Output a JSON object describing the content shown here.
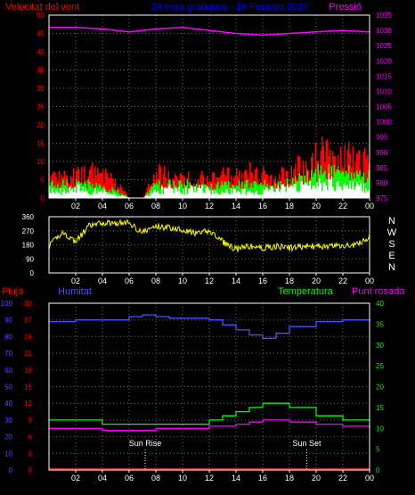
{
  "header": {
    "title": "24 hora gràfiques - 16 Febrero 2020",
    "wind_label": "Velocitat del vent",
    "pressure_label": "Pressió"
  },
  "footer": {
    "rain_label": "Pluja",
    "humidity_label": "Humitat",
    "temperature_label": "Temperatura",
    "dewpoint_label": "Punt rosada",
    "sunrise_label": "Sun Rise",
    "sunset_label": "Sun Set"
  },
  "colors": {
    "background": "#000000",
    "grid": "#6a6a6a",
    "frame": "#ffffff",
    "title": "#0000ff",
    "wind": "#ff0000",
    "wind_gust": "#ff0000",
    "wind_mid": "#00ff00",
    "wind_avg": "#ffffff",
    "pressure": "#ff00ff",
    "direction": "#ffff00",
    "rain": "#ff0000",
    "humidity": "#5050ff",
    "temperature": "#00ff00",
    "dewpoint": "#ff00ff",
    "sun_marker": "#ffffff"
  },
  "chart_data": [
    {
      "type": "area",
      "name_left": "Velocitat del vent",
      "name_right": "Pressió",
      "x_ticks": [
        "02",
        "04",
        "06",
        "08",
        "10",
        "12",
        "14",
        "16",
        "18",
        "20",
        "22",
        "00"
      ],
      "y_left_ticks": [
        "0",
        "5",
        "10",
        "15",
        "20",
        "25",
        "30",
        "35",
        "40",
        "45",
        "50"
      ],
      "y_left_lim": [
        0,
        50
      ],
      "y_right_ticks": [
        "975",
        "980",
        "985",
        "990",
        "995",
        "1000",
        "1005",
        "1010",
        "1015",
        "1020",
        "1025",
        "1030",
        "1035"
      ],
      "y_right_lim": [
        975,
        1035
      ],
      "grid": true,
      "series": [
        {
          "role": "gust",
          "x": [
            0,
            1,
            2,
            3,
            4,
            5,
            6,
            7,
            8,
            9,
            10,
            11,
            12,
            13,
            14,
            15,
            16,
            17,
            18,
            19,
            20,
            21,
            22,
            23,
            24
          ],
          "values": [
            6,
            7,
            6,
            7,
            6,
            4,
            0,
            0,
            7,
            6,
            6,
            6,
            5,
            6,
            6,
            7,
            6,
            6,
            7,
            9,
            11,
            13,
            12,
            11,
            9
          ]
        },
        {
          "role": "mid",
          "x": [
            0,
            1,
            2,
            3,
            4,
            5,
            6,
            7,
            8,
            9,
            10,
            11,
            12,
            13,
            14,
            15,
            16,
            17,
            18,
            19,
            20,
            21,
            22,
            23,
            24
          ],
          "values": [
            4,
            4,
            4,
            4,
            3,
            2,
            0,
            0,
            4,
            4,
            4,
            4,
            3,
            4,
            4,
            4,
            4,
            4,
            5,
            6,
            7,
            8,
            8,
            7,
            6
          ]
        },
        {
          "role": "average",
          "x": [
            0,
            1,
            2,
            3,
            4,
            5,
            6,
            7,
            8,
            9,
            10,
            11,
            12,
            13,
            14,
            15,
            16,
            17,
            18,
            19,
            20,
            21,
            22,
            23,
            24
          ],
          "values": [
            2,
            2,
            3,
            2,
            2,
            1,
            0,
            0,
            2,
            3,
            2,
            3,
            2,
            2,
            2,
            2,
            2,
            3,
            3,
            4,
            4,
            5,
            4,
            4,
            3
          ]
        },
        {
          "role": "pressure",
          "x": [
            0,
            2,
            4,
            6,
            8,
            10,
            12,
            14,
            16,
            18,
            20,
            22,
            24
          ],
          "values": [
            1031,
            1031,
            1030.5,
            1029.5,
            1030.5,
            1031,
            1030,
            1029,
            1028.5,
            1029,
            1029.5,
            1030,
            1029.5
          ]
        }
      ]
    },
    {
      "type": "line",
      "name_right": "N W S E N",
      "x_ticks": [
        "02",
        "04",
        "06",
        "08",
        "10",
        "12",
        "14",
        "16",
        "18",
        "20",
        "22",
        "00"
      ],
      "y_ticks": [
        "0",
        "90",
        "180",
        "270",
        "360"
      ],
      "y_lim": [
        0,
        360
      ],
      "compass": [
        "N",
        "W",
        "S",
        "E",
        "N"
      ],
      "grid": true,
      "series": [
        {
          "role": "direction",
          "x": [
            0,
            1,
            2,
            3,
            4,
            5,
            6,
            7,
            8,
            9,
            10,
            11,
            12,
            13,
            14,
            15,
            16,
            17,
            18,
            19,
            20,
            21,
            22,
            23,
            24
          ],
          "values": [
            170,
            260,
            200,
            300,
            320,
            320,
            320,
            260,
            300,
            290,
            280,
            250,
            270,
            200,
            150,
            170,
            160,
            170,
            160,
            170,
            170,
            170,
            175,
            180,
            230
          ]
        }
      ]
    },
    {
      "type": "line",
      "name_left": "Pluja",
      "name_left2": "Humitat",
      "name_right": "Temperatura",
      "name_right2": "Punt rosada",
      "x_ticks": [
        "02",
        "04",
        "06",
        "08",
        "10",
        "12",
        "14",
        "16",
        "18",
        "20",
        "22",
        "00"
      ],
      "y_rain_ticks": [
        "0",
        "3",
        "6",
        "9",
        "12",
        "15",
        "18",
        "21",
        "24",
        "27",
        "30"
      ],
      "y_humidity_ticks": [
        "0",
        "10",
        "20",
        "30",
        "40",
        "50",
        "60",
        "70",
        "80",
        "90",
        "100"
      ],
      "y_temp_ticks": [
        "0",
        "5",
        "10",
        "15",
        "20",
        "25",
        "30",
        "35",
        "40"
      ],
      "y_temp_lim": [
        0,
        40
      ],
      "y_humidity_lim": [
        0,
        100
      ],
      "annotations": [
        {
          "label": "Sun Rise",
          "x": 7.2
        },
        {
          "label": "Sun Set",
          "x": 19.3
        }
      ],
      "grid": true,
      "series": [
        {
          "role": "rain",
          "x": [
            0,
            24
          ],
          "values": [
            0,
            0
          ]
        },
        {
          "role": "humidity",
          "x": [
            0,
            2,
            4,
            6,
            7,
            8,
            9,
            10,
            12,
            13,
            14,
            15,
            16,
            17,
            18,
            20,
            22,
            24
          ],
          "values": [
            89,
            90,
            90,
            92,
            93,
            92,
            91,
            91,
            90,
            87,
            84,
            81,
            79,
            82,
            86,
            89,
            90,
            89
          ]
        },
        {
          "role": "temperature",
          "x": [
            0,
            2,
            4,
            6,
            8,
            10,
            12,
            13,
            14,
            15,
            16,
            17,
            18,
            20,
            22,
            24
          ],
          "values": [
            12,
            12,
            11,
            11,
            11,
            11,
            12,
            13,
            14,
            15,
            16,
            16,
            15,
            13,
            12,
            12
          ]
        },
        {
          "role": "dewpoint",
          "x": [
            0,
            2,
            4,
            6,
            8,
            10,
            12,
            14,
            15,
            16,
            17,
            18,
            20,
            22,
            24
          ],
          "values": [
            10,
            10,
            9.5,
            9.5,
            10,
            10,
            10.5,
            11,
            11.5,
            12,
            12,
            11.5,
            11,
            10.5,
            10
          ]
        }
      ]
    }
  ]
}
